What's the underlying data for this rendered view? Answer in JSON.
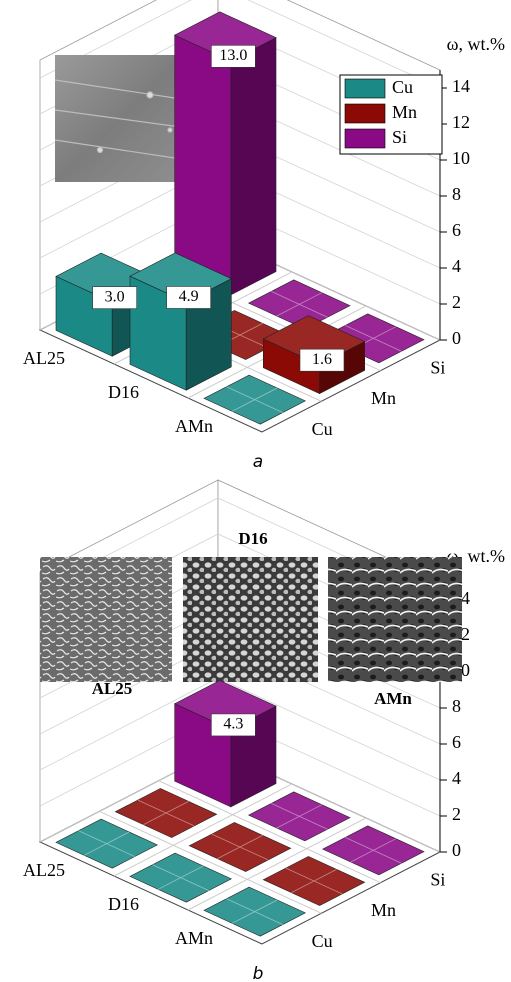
{
  "chart_data": [
    {
      "type": "bar3d",
      "caption": "a",
      "z_label": "ω, wt.%",
      "categories": [
        "AL25",
        "D16",
        "AMn"
      ],
      "series": [
        {
          "name": "Cu",
          "color": "#1b8a87",
          "values": [
            3.0,
            4.9,
            0
          ],
          "value_labels": [
            "3.0",
            "4.9",
            null
          ]
        },
        {
          "name": "Mn",
          "color": "#8b0a06",
          "values": [
            0,
            0,
            1.6
          ],
          "value_labels": [
            null,
            null,
            "1.6"
          ]
        },
        {
          "name": "Si",
          "color": "#8a0a86",
          "values": [
            13.0,
            0,
            0
          ],
          "value_labels": [
            "13.0",
            null,
            null
          ]
        }
      ],
      "zlim": [
        0,
        15
      ],
      "zticks": [
        0,
        2,
        4,
        6,
        8,
        10,
        12,
        14
      ],
      "grid": true,
      "legend": "upper right"
    },
    {
      "type": "bar3d",
      "caption": "b",
      "z_label": "ω, wt.%",
      "categories": [
        "AL25",
        "D16",
        "AMn"
      ],
      "series": [
        {
          "name": "Cu",
          "color": "#1b8a87",
          "values": [
            0,
            0,
            0
          ]
        },
        {
          "name": "Mn",
          "color": "#8b0a06",
          "values": [
            0,
            0,
            0
          ]
        },
        {
          "name": "Si",
          "color": "#8a0a86",
          "values": [
            4.3,
            0,
            0
          ],
          "value_labels": [
            "4.3",
            null,
            null
          ]
        }
      ],
      "zlim": [
        0,
        15
      ],
      "zticks": [
        0,
        2,
        4,
        6,
        8,
        10,
        12,
        14
      ],
      "grid": true,
      "annotations": [
        "D16",
        "AL25",
        "AMn"
      ]
    }
  ]
}
